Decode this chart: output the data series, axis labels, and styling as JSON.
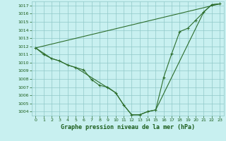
{
  "title": "Graphe pression niveau de la mer (hPa)",
  "background_color": "#c8f0f0",
  "grid_color": "#90c8c8",
  "line_color": "#2d6e2d",
  "text_color": "#1a5c1a",
  "ylim": [
    1003.5,
    1017.5
  ],
  "yticks": [
    1004,
    1005,
    1006,
    1007,
    1008,
    1009,
    1010,
    1011,
    1012,
    1013,
    1014,
    1015,
    1016,
    1017
  ],
  "xlim": [
    -0.5,
    23.5
  ],
  "xticks": [
    0,
    1,
    2,
    3,
    4,
    5,
    6,
    7,
    8,
    9,
    10,
    11,
    12,
    13,
    14,
    15,
    16,
    17,
    18,
    19,
    20,
    21,
    22,
    23
  ],
  "series_main": {
    "x": [
      0,
      1,
      2,
      3,
      4,
      5,
      6,
      7,
      8,
      9,
      10,
      11,
      12,
      13,
      14,
      15,
      16,
      17,
      18,
      19,
      20,
      21,
      22,
      23
    ],
    "y": [
      1011.8,
      1011.0,
      1010.5,
      1010.2,
      1009.7,
      1009.4,
      1009.1,
      1007.9,
      1007.2,
      1007.0,
      1006.3,
      1004.8,
      1003.6,
      1003.6,
      1004.0,
      1004.2,
      1008.2,
      1011.1,
      1013.8,
      1014.2,
      1015.2,
      1016.2,
      1017.1,
      1017.2
    ]
  },
  "series_lines": [
    {
      "x": [
        0,
        2,
        3,
        4,
        5,
        10,
        11,
        12,
        13,
        14,
        15,
        21,
        22,
        23
      ],
      "y": [
        1011.8,
        1010.5,
        1010.2,
        1009.7,
        1009.4,
        1006.3,
        1004.8,
        1003.6,
        1003.6,
        1004.0,
        1004.2,
        1016.2,
        1017.1,
        1017.2
      ]
    },
    {
      "x": [
        0,
        23
      ],
      "y": [
        1011.8,
        1017.2
      ]
    }
  ],
  "tick_fontsize": 4.5,
  "label_fontsize": 6.0
}
